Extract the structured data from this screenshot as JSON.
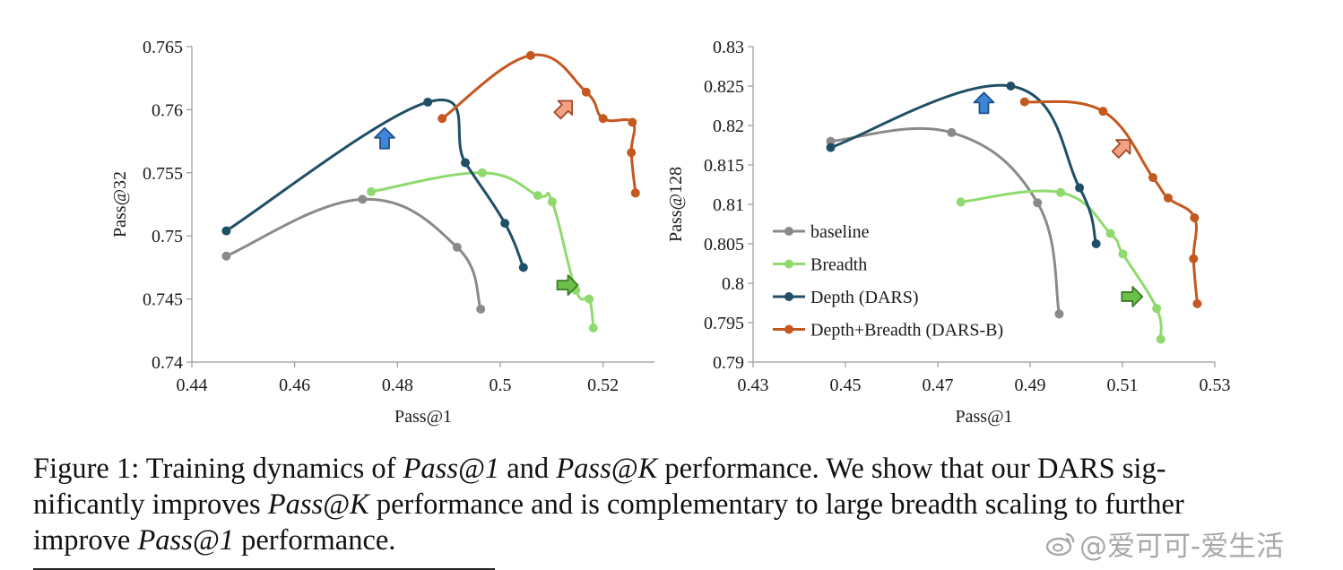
{
  "chart_data": [
    {
      "type": "line",
      "xlabel": "Pass@1",
      "ylabel": "Pass@32",
      "xlim": [
        0.44,
        0.53
      ],
      "ylim": [
        0.74,
        0.765
      ],
      "xticks": [
        "0.44",
        "0.46",
        "0.48",
        "0.5",
        "0.52"
      ],
      "yticks": [
        "0.74",
        "0.745",
        "0.75",
        "0.755",
        "0.76",
        "0.765"
      ],
      "grid": false,
      "series": [
        {
          "name": "baseline",
          "color": "#8a8a8a",
          "x": [
            0.4467,
            0.4732,
            0.4916,
            0.4962
          ],
          "y": [
            0.7484,
            0.7529,
            0.7491,
            0.7442
          ]
        },
        {
          "name": "Breadth",
          "color": "#8fda6e",
          "x": [
            0.4749,
            0.4965,
            0.5073,
            0.5101,
            0.5147,
            0.5173,
            0.5181
          ],
          "y": [
            0.7535,
            0.755,
            0.7532,
            0.7527,
            0.7457,
            0.745,
            0.7427
          ]
        },
        {
          "name": "Depth (DARS)",
          "color": "#1f4f66",
          "x": [
            0.4467,
            0.4859,
            0.4932,
            0.5009,
            0.5045
          ],
          "y": [
            0.7504,
            0.7606,
            0.7558,
            0.751,
            0.7475
          ]
        },
        {
          "name": "Depth+Breadth (DARS-B)",
          "color": "#c4581f",
          "x": [
            0.4887,
            0.5059,
            0.5167,
            0.52,
            0.5257,
            0.5255,
            0.5263
          ],
          "y": [
            0.7593,
            0.7643,
            0.7614,
            0.7593,
            0.759,
            0.7566,
            0.7534
          ]
        }
      ],
      "annotations": [
        {
          "shape": "arrow-up",
          "color": "#3f86d8",
          "x": 0.4775,
          "y": 0.7577
        },
        {
          "shape": "arrow-right",
          "color": "#6cc04a",
          "x": 0.513,
          "y": 0.7461
        },
        {
          "shape": "arrow-up-right",
          "color": "#f4a183",
          "x": 0.5125,
          "y": 0.7601
        }
      ]
    },
    {
      "type": "line",
      "xlabel": "Pass@1",
      "ylabel": "Pass@128",
      "xlim": [
        0.43,
        0.53
      ],
      "ylim": [
        0.79,
        0.83
      ],
      "xticks": [
        "0.43",
        "0.45",
        "0.47",
        "0.49",
        "0.51",
        "0.53"
      ],
      "yticks": [
        "0.79",
        "0.795",
        "0.8",
        "0.805",
        "0.81",
        "0.815",
        "0.82",
        "0.825",
        "0.83"
      ],
      "grid": false,
      "legend_position": "bottom-left",
      "series": [
        {
          "name": "baseline",
          "color": "#8a8a8a",
          "x": [
            0.4468,
            0.473,
            0.4916,
            0.4963
          ],
          "y": [
            0.818,
            0.8191,
            0.8102,
            0.7961
          ]
        },
        {
          "name": "Breadth",
          "color": "#8fda6e",
          "x": [
            0.475,
            0.4966,
            0.5074,
            0.5101,
            0.5174,
            0.5183
          ],
          "y": [
            0.8103,
            0.8115,
            0.8063,
            0.8037,
            0.7968,
            0.7929
          ]
        },
        {
          "name": "Depth (DARS)",
          "color": "#1f4f66",
          "x": [
            0.4468,
            0.4858,
            0.5007,
            0.5043
          ],
          "y": [
            0.8172,
            0.825,
            0.8121,
            0.805
          ]
        },
        {
          "name": "Depth+Breadth (DARS-B)",
          "color": "#c4581f",
          "x": [
            0.4888,
            0.5058,
            0.5166,
            0.5199,
            0.5256,
            0.5254,
            0.5262
          ],
          "y": [
            0.823,
            0.8218,
            0.8134,
            0.8108,
            0.8083,
            0.8031,
            0.7974
          ]
        }
      ],
      "annotations": [
        {
          "shape": "arrow-up",
          "color": "#3f86d8",
          "x": 0.48,
          "y": 0.8228
        },
        {
          "shape": "arrow-right",
          "color": "#6cc04a",
          "x": 0.512,
          "y": 0.7983
        },
        {
          "shape": "arrow-up-right",
          "color": "#f4a183",
          "x": 0.51,
          "y": 0.8172
        }
      ]
    }
  ],
  "caption": {
    "line1_a": "Figure 1: Training dynamics of ",
    "line1_em1": "Pass@1",
    "line1_b": " and ",
    "line1_em2": "Pass@K",
    "line1_c": " performance. We show that our DARS sig-",
    "line2_a": "nificantly improves ",
    "line2_em": "Pass@K",
    "line2_b": " performance and is complementary to large breadth scaling to further",
    "line3_a": "improve ",
    "line3_em": "Pass@1",
    "line3_b": " performance."
  },
  "watermark": {
    "text": "@爱可可-爱生活",
    "icon": "weibo-icon"
  }
}
